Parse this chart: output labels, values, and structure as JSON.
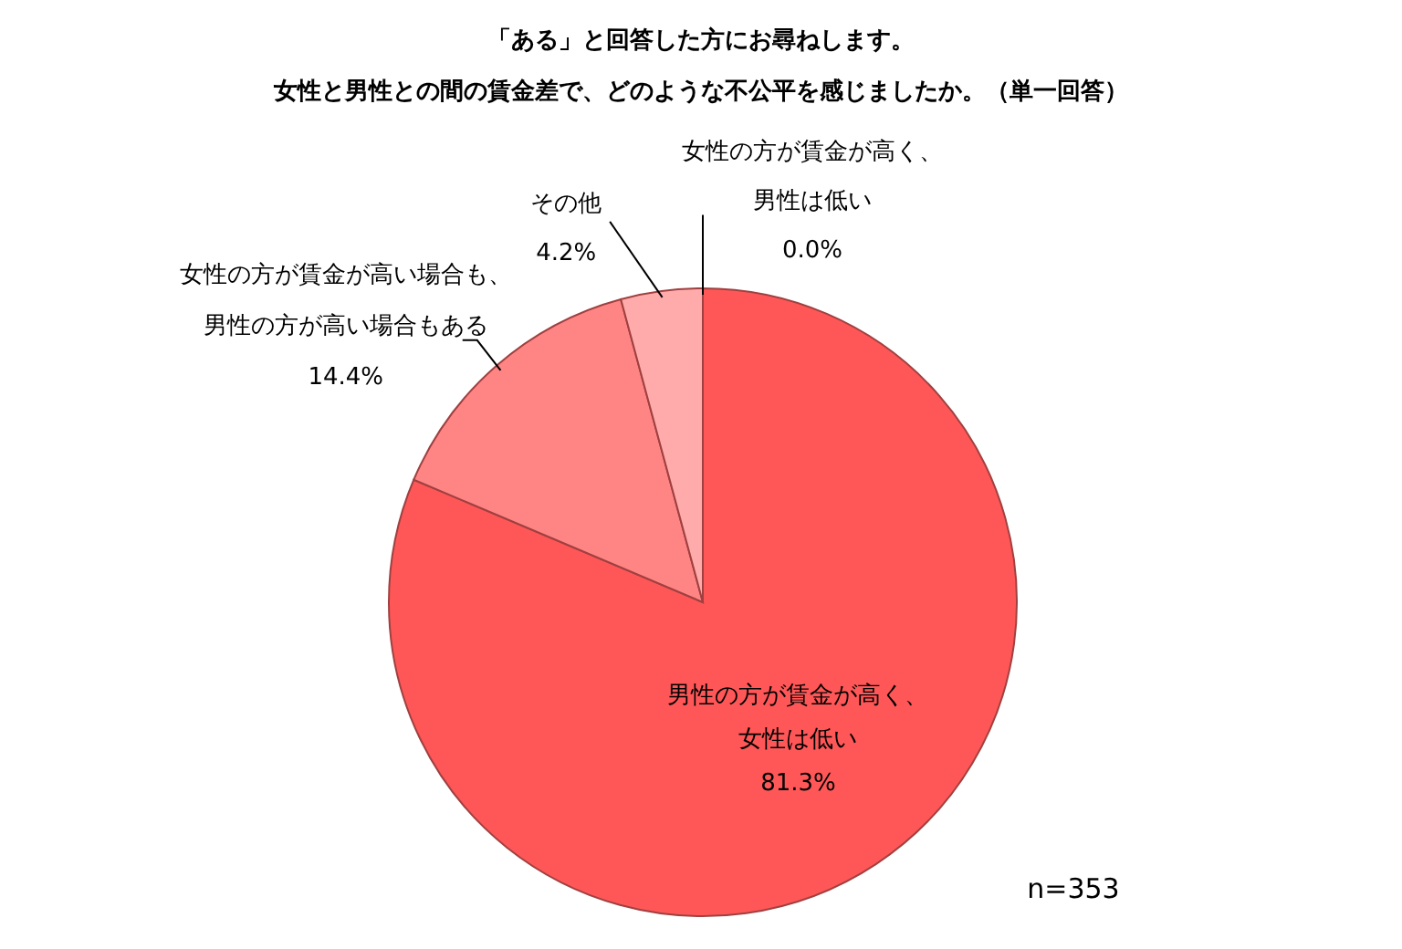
{
  "chart_data": {
    "type": "pie",
    "title": "「ある」と回答した方にお尋ねします。",
    "subtitle": "女性と男性との間の賃金差で、どのような不公平を感じましたか。（単一回答）",
    "categories": [
      "男性の方が賃金が高く、女性は低い",
      "女性の方が賃金が高い場合も、男性の方が高い場合もある",
      "その他",
      "女性の方が賃金が高く、男性は低い"
    ],
    "values": [
      81.3,
      14.4,
      4.2,
      0.0
    ],
    "value_labels": [
      "81.3%",
      "14.4%",
      "4.2%",
      "0.0%"
    ],
    "colors": [
      "#ff5757",
      "#ff8585",
      "#ffabab",
      "#ffd0d0"
    ],
    "annotations": [
      "n=353"
    ]
  }
}
